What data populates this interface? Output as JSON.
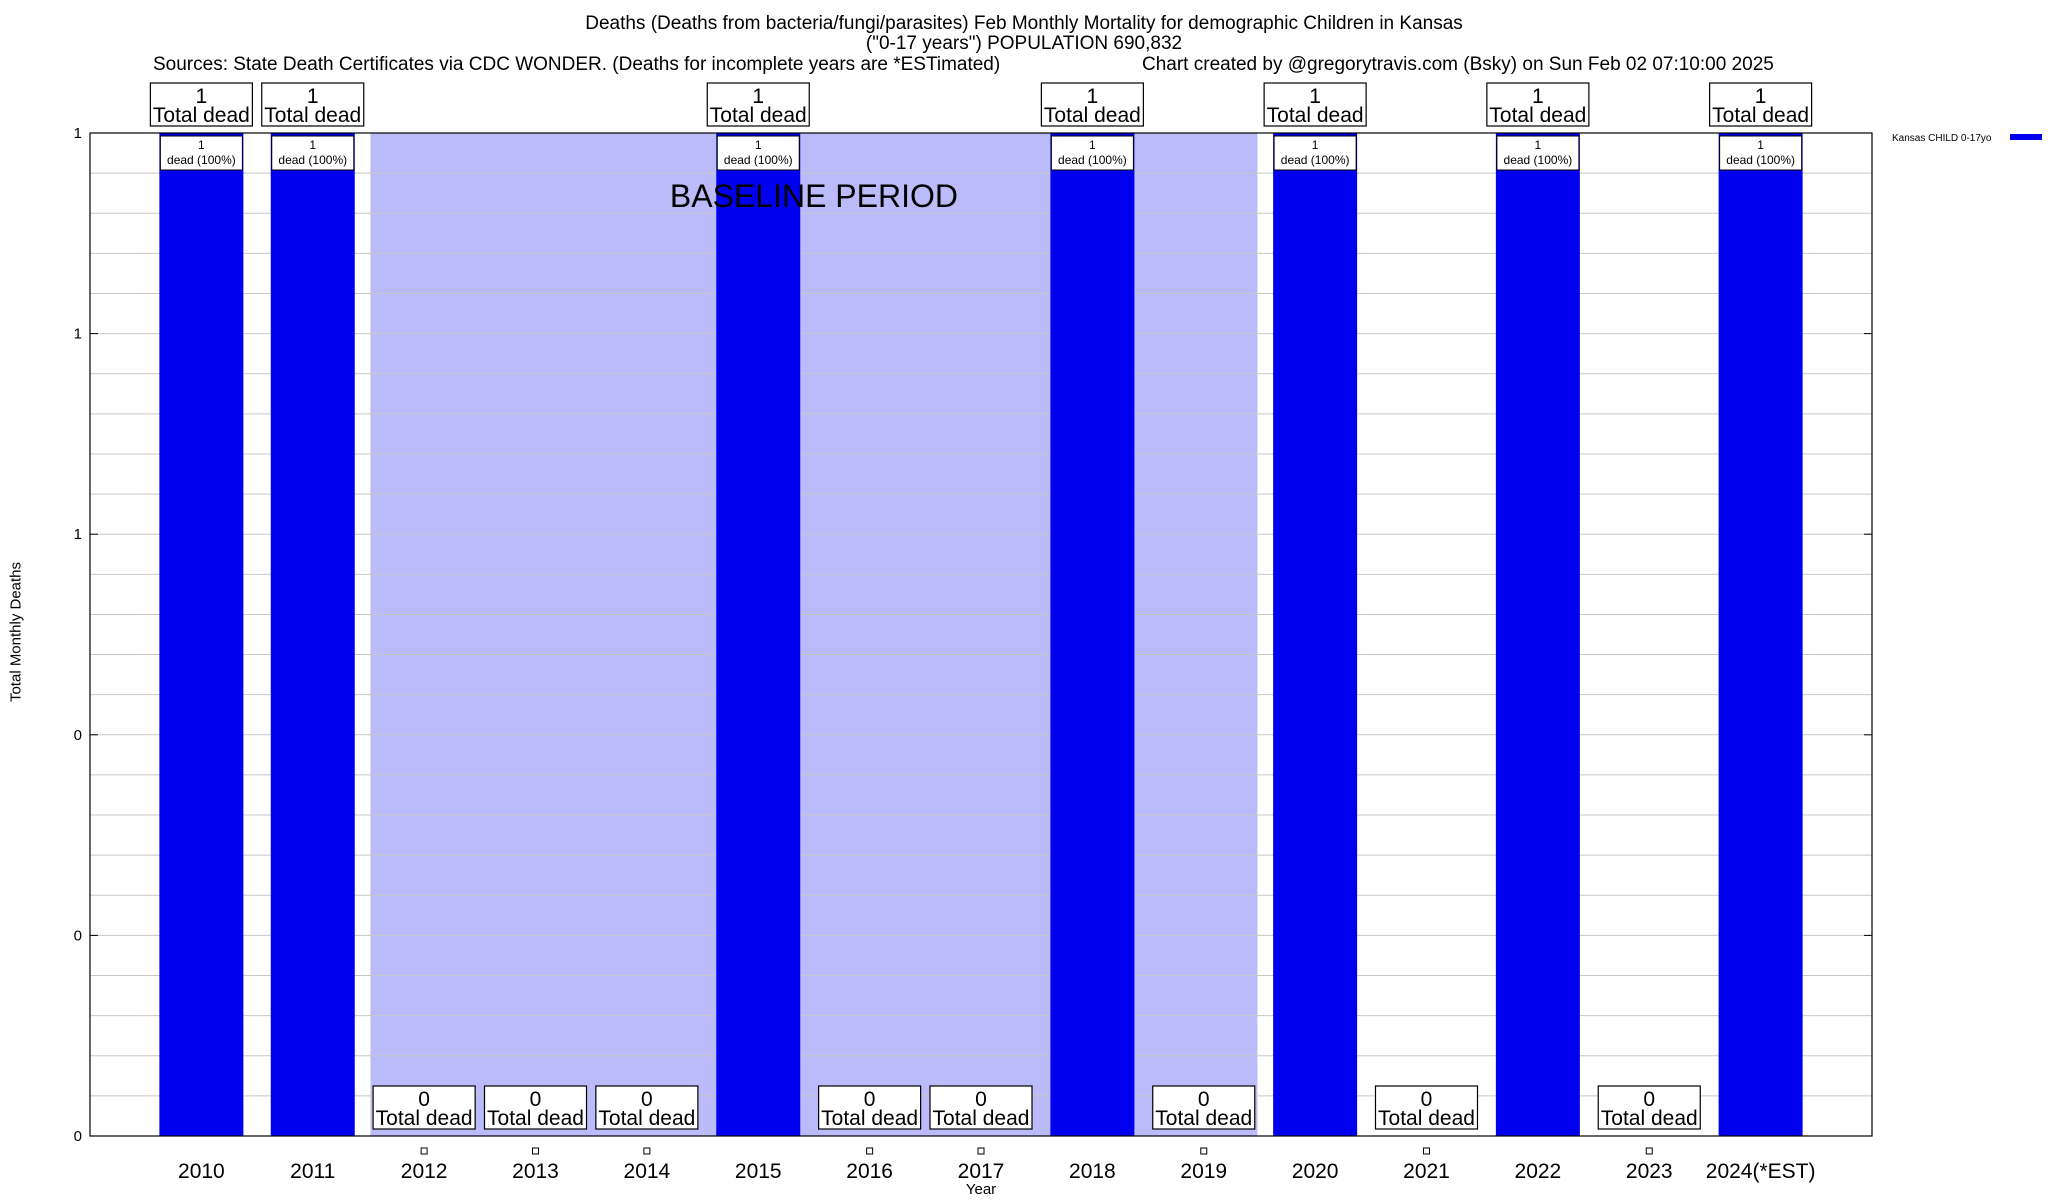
{
  "chart_data": {
    "type": "bar",
    "title_line1": "Deaths (Deaths from bacteria/fungi/parasites) Feb Monthly Mortality for demographic Children in Kansas",
    "title_line2": "(\"0-17 years\") POPULATION 690,832",
    "subtitle_left": "Sources: State Death Certificates via CDC WONDER. (Deaths for incomplete years are *ESTimated)",
    "subtitle_right": "Chart created by @gregorytravis.com (Bsky) on Sun Feb 02 07:10:00 2025",
    "xlabel": "Year",
    "ylabel": "Total Monthly Deaths",
    "categories": [
      "2010",
      "2011",
      "2012",
      "2013",
      "2014",
      "2015",
      "2016",
      "2017",
      "2018",
      "2019",
      "2020",
      "2021",
      "2022",
      "2023",
      "2024(*EST)"
    ],
    "series": [
      {
        "name": "Kansas CHILD 0-17yo",
        "color": "#0000ee",
        "values": [
          1,
          1,
          0,
          0,
          0,
          1,
          0,
          0,
          1,
          0,
          1,
          0,
          1,
          0,
          1
        ]
      }
    ],
    "ylim": [
      0,
      1
    ],
    "y_ticks": [
      0,
      0.2,
      0.4,
      0.6,
      0.8,
      1
    ],
    "y_tick_labels": [
      "0",
      "0",
      "0",
      "1",
      "1",
      "1"
    ],
    "total_label_suffix": "Total dead",
    "inner_label_suffix": "dead (100%)",
    "baseline_period": {
      "label": "BASELINE PERIOD",
      "from": "2012",
      "to": "2019",
      "color": "#bbbbf9"
    },
    "grid": true,
    "legend_position": "top-right",
    "colors": {
      "bar": "#0000ee",
      "baseline": "#bbbbf9",
      "grid": "#c8c8c8"
    }
  }
}
